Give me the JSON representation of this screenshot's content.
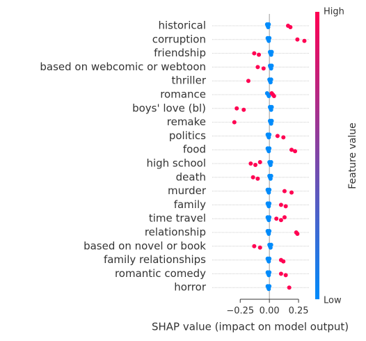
{
  "chart_data": {
    "type": "beeswarm",
    "xlabel": "SHAP value (impact on model output)",
    "xlim": [
      -0.49,
      0.345
    ],
    "xticks": [
      {
        "value": -0.25,
        "label": "−0.25"
      },
      {
        "value": 0,
        "label": "0.00"
      },
      {
        "value": 0.25,
        "label": "0.25"
      }
    ],
    "colorbar": {
      "high": "High",
      "low": "Low",
      "label": "Feature value",
      "colors": [
        "#008bfb",
        "#ff0052"
      ]
    },
    "grid": true,
    "rows": [
      {
        "name": "historical",
        "values": [
          -0.02,
          -0.015,
          -0.01,
          -0.005,
          0.16,
          0.18
        ],
        "feature_values": [
          0,
          0,
          0,
          0,
          1,
          1
        ]
      },
      {
        "name": "corruption",
        "values": [
          -0.015,
          -0.01,
          -0.005,
          0,
          0.24,
          0.3
        ],
        "feature_values": [
          0,
          0,
          0,
          0,
          1,
          1
        ]
      },
      {
        "name": "friendship",
        "values": [
          0.005,
          0.01,
          0.015,
          0.02,
          -0.13,
          -0.09
        ],
        "feature_values": [
          0,
          0,
          0,
          0,
          1,
          1
        ]
      },
      {
        "name": "based on webcomic or webtoon",
        "values": [
          0.005,
          0.01,
          0.015,
          0.02,
          -0.1,
          -0.05
        ],
        "feature_values": [
          0,
          0,
          0,
          0,
          1,
          1
        ]
      },
      {
        "name": "thriller",
        "values": [
          0,
          0.005,
          0.01,
          0.015,
          -0.18
        ],
        "feature_values": [
          0,
          0,
          0,
          0,
          1
        ]
      },
      {
        "name": "romance",
        "values": [
          -0.02,
          -0.01,
          -0.005,
          0.02,
          0.03,
          0.04
        ],
        "feature_values": [
          0,
          0,
          0,
          1,
          1,
          1
        ]
      },
      {
        "name": "boys' love (bl)",
        "values": [
          0.005,
          0.01,
          0.015,
          0.02,
          -0.28,
          -0.22
        ],
        "feature_values": [
          0,
          0,
          0,
          0,
          1,
          1
        ]
      },
      {
        "name": "remake",
        "values": [
          0.005,
          0.01,
          0.015,
          0.02,
          -0.3
        ],
        "feature_values": [
          0,
          0,
          0,
          0,
          1
        ]
      },
      {
        "name": "politics",
        "values": [
          -0.015,
          -0.01,
          -0.005,
          0,
          0.07,
          0.12
        ],
        "feature_values": [
          0,
          0,
          0,
          0,
          1,
          1
        ]
      },
      {
        "name": "food",
        "values": [
          -0.015,
          -0.01,
          -0.005,
          0,
          0.19,
          0.22
        ],
        "feature_values": [
          0,
          0,
          0,
          0,
          1,
          1
        ]
      },
      {
        "name": "high school",
        "values": [
          0,
          0.005,
          0.01,
          0.015,
          -0.16,
          -0.12,
          -0.08
        ],
        "feature_values": [
          0,
          0,
          0,
          0,
          1,
          1,
          1
        ]
      },
      {
        "name": "death",
        "values": [
          0,
          0.005,
          0.01,
          0.015,
          -0.14,
          -0.1
        ],
        "feature_values": [
          0,
          0,
          0,
          0,
          1,
          1
        ]
      },
      {
        "name": "murder",
        "values": [
          -0.015,
          -0.01,
          -0.005,
          0,
          0.13,
          0.19
        ],
        "feature_values": [
          0,
          0,
          0,
          0,
          1,
          1
        ]
      },
      {
        "name": "family",
        "values": [
          -0.015,
          -0.01,
          -0.005,
          0,
          0.1,
          0.14
        ],
        "feature_values": [
          0,
          0,
          0,
          0,
          1,
          1
        ]
      },
      {
        "name": "time travel",
        "values": [
          -0.015,
          -0.01,
          -0.005,
          0,
          0.06,
          0.1,
          0.13
        ],
        "feature_values": [
          0,
          0,
          0,
          0,
          1,
          1,
          1
        ]
      },
      {
        "name": "relationship",
        "values": [
          -0.015,
          -0.01,
          -0.005,
          0,
          0.23,
          0.24
        ],
        "feature_values": [
          0,
          0,
          0,
          0,
          1,
          1
        ]
      },
      {
        "name": "based on novel or book",
        "values": [
          0,
          0.005,
          0.01,
          0.015,
          -0.13,
          -0.08
        ],
        "feature_values": [
          0,
          0,
          0,
          0,
          1,
          1
        ]
      },
      {
        "name": "family relationships",
        "values": [
          -0.015,
          -0.01,
          -0.005,
          0,
          0.1,
          0.12
        ],
        "feature_values": [
          0,
          0,
          0,
          0,
          1,
          1
        ]
      },
      {
        "name": "romantic comedy",
        "values": [
          -0.015,
          -0.01,
          -0.005,
          0,
          0.1,
          0.14
        ],
        "feature_values": [
          0,
          0,
          0,
          0,
          1,
          1
        ]
      },
      {
        "name": "horror",
        "values": [
          -0.015,
          -0.01,
          -0.005,
          0,
          0.17
        ],
        "feature_values": [
          0,
          0,
          0,
          0,
          1
        ]
      }
    ]
  }
}
